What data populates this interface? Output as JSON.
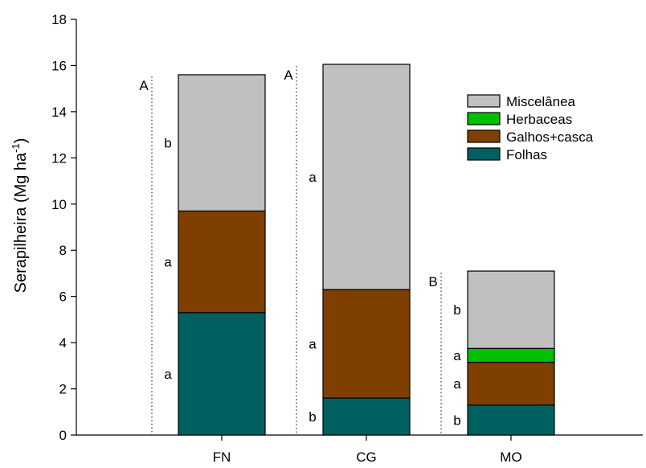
{
  "chart_data": {
    "type": "bar",
    "stacked": true,
    "categories": [
      "FN",
      "CG",
      "MO"
    ],
    "ylabel": "Serapilheira (Mg ha",
    "ylabel_sup": "-1",
    "ylabel_close": ")",
    "ylim": [
      0,
      18
    ],
    "yticks": [
      0,
      2,
      4,
      6,
      8,
      10,
      12,
      14,
      16,
      18
    ],
    "grid": false,
    "legend_position": "top-right",
    "series": [
      {
        "name": "Folhas",
        "color": "#006060",
        "values": [
          5.3,
          1.6,
          1.3
        ]
      },
      {
        "name": "Galhos+casca",
        "color": "#7f3f00",
        "values": [
          4.4,
          4.7,
          1.85
        ]
      },
      {
        "name": "Herbaceas",
        "color": "#00c000",
        "values": [
          0,
          0,
          0.6
        ]
      },
      {
        "name": "Miscelânea",
        "color": "#c0c0c0",
        "values": [
          5.9,
          9.75,
          3.35
        ]
      }
    ],
    "legend_order": [
      "Miscelânea",
      "Herbaceas",
      "Galhos+casca",
      "Folhas"
    ],
    "segment_letters": [
      [
        "a",
        "a",
        "",
        "b"
      ],
      [
        "b",
        "a",
        "",
        "a"
      ],
      [
        "b",
        "a",
        "a",
        "b"
      ]
    ],
    "group_letters": [
      "A",
      "A",
      "B"
    ]
  }
}
